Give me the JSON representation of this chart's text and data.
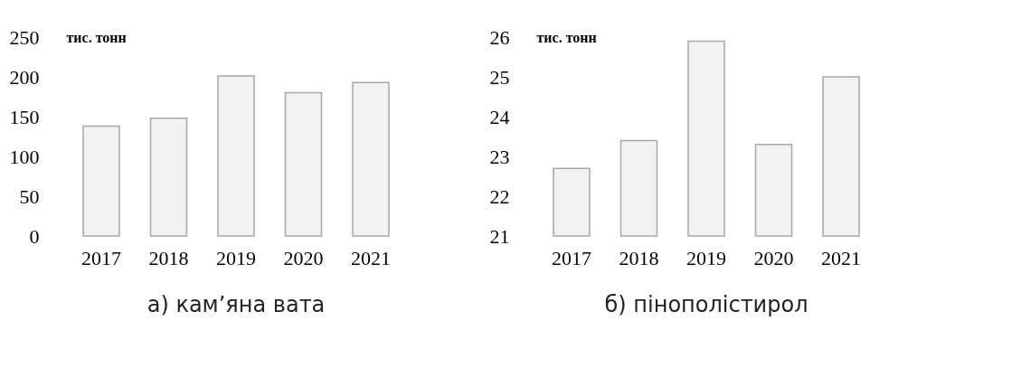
{
  "chart_data": [
    {
      "type": "bar",
      "title": "а) кам’яна вата",
      "ylabel": "тис. тонн",
      "categories": [
        "2017",
        "2018",
        "2019",
        "2020",
        "2021"
      ],
      "values": [
        138,
        148,
        201,
        180,
        193
      ],
      "color": "#f2f2f2",
      "ylim": [
        0,
        250
      ],
      "yticks": [
        0,
        50,
        100,
        150,
        200,
        250
      ],
      "grid": false
    },
    {
      "type": "bar",
      "title": "б) пінополістирол",
      "ylabel": "тис. тонн",
      "categories": [
        "2017",
        "2018",
        "2019",
        "2020",
        "2021"
      ],
      "values": [
        22.7,
        23.4,
        25.9,
        23.3,
        25.0
      ],
      "color": "#f2f2f2",
      "ylim": [
        21,
        26
      ],
      "yticks": [
        21,
        22,
        23,
        24,
        25,
        26
      ],
      "grid": false
    }
  ]
}
